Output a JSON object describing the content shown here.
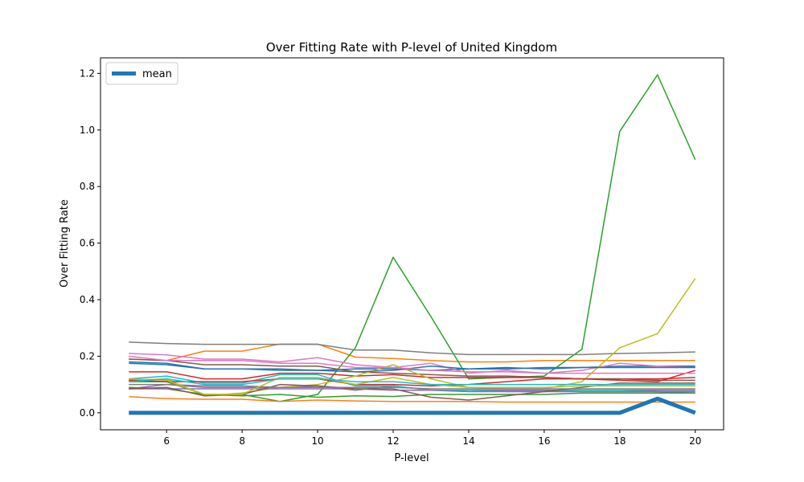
{
  "chart_data": {
    "type": "line",
    "title": "Over Fitting Rate with P-level of United Kingdom",
    "xlabel": "P-level",
    "ylabel": "Over Fitting Rate",
    "xlim": [
      4.25,
      20.75
    ],
    "ylim": [
      -0.06,
      1.255
    ],
    "xticks": [
      6,
      8,
      10,
      12,
      14,
      16,
      18,
      20
    ],
    "yticks": [
      0.0,
      0.2,
      0.4,
      0.6,
      0.8,
      1.0,
      1.2
    ],
    "ytick_labels": [
      "0.0",
      "0.2",
      "0.4",
      "0.6",
      "0.8",
      "1.0",
      "1.2"
    ],
    "x": [
      5,
      6,
      7,
      8,
      9,
      10,
      11,
      12,
      13,
      14,
      15,
      16,
      17,
      18,
      19,
      20
    ],
    "legend": {
      "position": "upper-left",
      "entries": [
        "mean"
      ]
    },
    "grid": false,
    "series": [
      {
        "name": "mean",
        "color": "#1f77b4",
        "width": 5,
        "values": [
          0,
          0,
          0,
          0,
          0,
          0,
          0,
          0,
          0,
          0,
          0,
          0,
          0,
          0,
          0.05,
          0
        ]
      },
      {
        "color": "#1f77b4",
        "width": 1.5,
        "values": [
          0.18,
          0.175,
          0.155,
          0.155,
          0.15,
          0.15,
          0.155,
          0.155,
          0.15,
          0.155,
          0.155,
          0.16,
          0.16,
          0.165,
          0.165,
          0.165
        ]
      },
      {
        "color": "#ff7f0e",
        "width": 1.5,
        "values": [
          0.19,
          0.185,
          0.218,
          0.218,
          0.243,
          0.243,
          0.197,
          0.192,
          0.185,
          0.18,
          0.18,
          0.185,
          0.185,
          0.185,
          0.185,
          0.185
        ]
      },
      {
        "color": "#2ca02c",
        "width": 1.5,
        "values": [
          0.11,
          0.11,
          0.065,
          0.065,
          0.04,
          0.065,
          0.23,
          0.55,
          0.34,
          0.12,
          0.125,
          0.13,
          0.225,
          0.995,
          1.195,
          0.895
        ]
      },
      {
        "color": "#d62728",
        "width": 1.5,
        "values": [
          0.145,
          0.145,
          0.12,
          0.12,
          0.14,
          0.14,
          0.13,
          0.135,
          0.125,
          0.125,
          0.125,
          0.125,
          0.12,
          0.12,
          0.12,
          0.125
        ]
      },
      {
        "color": "#9467bd",
        "width": 1.5,
        "values": [
          0.085,
          0.1,
          0.09,
          0.09,
          0.09,
          0.095,
          0.08,
          0.095,
          0.08,
          0.08,
          0.08,
          0.08,
          0.08,
          0.08,
          0.08,
          0.08
        ]
      },
      {
        "color": "#8c564b",
        "width": 1.5,
        "values": [
          0.19,
          0.185,
          0.17,
          0.17,
          0.165,
          0.165,
          0.145,
          0.14,
          0.135,
          0.13,
          0.13,
          0.125,
          0.12,
          0.12,
          0.115,
          0.115
        ]
      },
      {
        "color": "#e377c2",
        "width": 1.5,
        "values": [
          0.21,
          0.205,
          0.19,
          0.19,
          0.18,
          0.195,
          0.17,
          0.16,
          0.175,
          0.14,
          0.15,
          0.14,
          0.15,
          0.175,
          0.165,
          0.16
        ]
      },
      {
        "color": "#7f7f7f",
        "width": 1.5,
        "values": [
          0.25,
          0.245,
          0.242,
          0.242,
          0.242,
          0.242,
          0.222,
          0.222,
          0.212,
          0.206,
          0.206,
          0.206,
          0.206,
          0.21,
          0.212,
          0.215
        ]
      },
      {
        "color": "#bcbd22",
        "width": 1.5,
        "values": [
          0.115,
          0.12,
          0.06,
          0.07,
          0.09,
          0.1,
          0.13,
          0.17,
          0.12,
          0.09,
          0.085,
          0.085,
          0.11,
          0.23,
          0.28,
          0.475
        ]
      },
      {
        "color": "#17becf",
        "width": 1.5,
        "values": [
          0.12,
          0.13,
          0.105,
          0.105,
          0.135,
          0.135,
          0.095,
          0.095,
          0.08,
          0.08,
          0.075,
          0.075,
          0.08,
          0.08,
          0.075,
          0.07
        ]
      },
      {
        "color": "#1f77b4",
        "width": 1.5,
        "values": [
          0.175,
          0.17,
          0.155,
          0.155,
          0.155,
          0.15,
          0.145,
          0.15,
          0.165,
          0.155,
          0.16,
          0.155,
          0.16,
          0.16,
          0.16,
          0.16
        ]
      },
      {
        "color": "#ff7f0e",
        "width": 1.5,
        "values": [
          0.057,
          0.05,
          0.048,
          0.048,
          0.04,
          0.045,
          0.042,
          0.04,
          0.04,
          0.04,
          0.038,
          0.038,
          0.038,
          0.038,
          0.038,
          0.038
        ]
      },
      {
        "color": "#2ca02c",
        "width": 1.5,
        "values": [
          0.09,
          0.085,
          0.065,
          0.06,
          0.065,
          0.055,
          0.06,
          0.058,
          0.065,
          0.065,
          0.065,
          0.065,
          0.07,
          0.07,
          0.07,
          0.07
        ]
      },
      {
        "color": "#d62728",
        "width": 1.5,
        "values": [
          0.115,
          0.11,
          0.11,
          0.11,
          0.12,
          0.12,
          0.1,
          0.1,
          0.095,
          0.1,
          0.11,
          0.12,
          0.12,
          0.115,
          0.11,
          0.15
        ]
      },
      {
        "color": "#9467bd",
        "width": 1.5,
        "values": [
          0.085,
          0.085,
          0.085,
          0.085,
          0.085,
          0.085,
          0.085,
          0.08,
          0.08,
          0.075,
          0.075,
          0.075,
          0.075,
          0.075,
          0.075,
          0.075
        ]
      },
      {
        "color": "#8c564b",
        "width": 1.5,
        "values": [
          0.085,
          0.09,
          0.06,
          0.065,
          0.1,
          0.095,
          0.085,
          0.085,
          0.055,
          0.045,
          0.06,
          0.075,
          0.09,
          0.105,
          0.105,
          0.105
        ]
      },
      {
        "color": "#e377c2",
        "width": 1.5,
        "values": [
          0.2,
          0.185,
          0.185,
          0.185,
          0.175,
          0.175,
          0.16,
          0.16,
          0.15,
          0.145,
          0.145,
          0.14,
          0.14,
          0.14,
          0.14,
          0.14
        ]
      },
      {
        "color": "#7f7f7f",
        "width": 1.5,
        "values": [
          0.1,
          0.1,
          0.095,
          0.095,
          0.09,
          0.09,
          0.09,
          0.09,
          0.085,
          0.085,
          0.085,
          0.085,
          0.085,
          0.085,
          0.085,
          0.085
        ]
      },
      {
        "color": "#bcbd22",
        "width": 1.5,
        "values": [
          0.12,
          0.115,
          0.065,
          0.065,
          0.125,
          0.125,
          0.1,
          0.125,
          0.1,
          0.09,
          0.09,
          0.09,
          0.095,
          0.095,
          0.095,
          0.095
        ]
      },
      {
        "color": "#17becf",
        "width": 1.5,
        "values": [
          0.11,
          0.12,
          0.1,
          0.1,
          0.12,
          0.12,
          0.11,
          0.11,
          0.1,
          0.1,
          0.1,
          0.1,
          0.1,
          0.1,
          0.1,
          0.1
        ]
      }
    ]
  }
}
